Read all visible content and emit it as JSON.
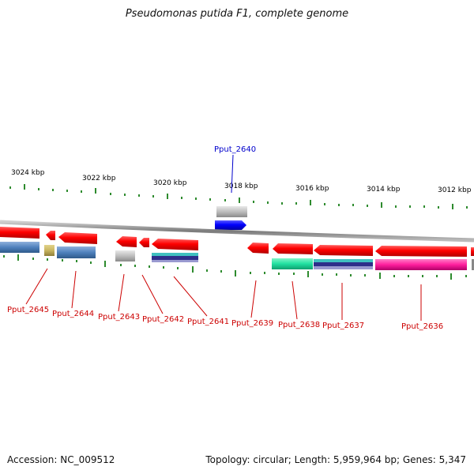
{
  "title": "Pseudomonas putida F1, complete genome",
  "footer": {
    "accession": "Accession: NC_009512",
    "summary": "Topology: circular; Length: 5,959,964 bp; Genes: 5,347"
  },
  "colors": {
    "red": "#ff0000",
    "blue": "#0000ff",
    "steel": "#4f81bd",
    "khaki": "#c8b560",
    "gray": "#b8b8b8",
    "teal": "#40c0c0",
    "navy": "#2e2e8a",
    "green": "#20e0a0",
    "magenta": "#ff1f9e",
    "label_red": "#cc0000",
    "label_blue": "#0000cc",
    "tick_green": "#2e8b2e",
    "backbone": "#888888"
  },
  "kbp_labels": [
    {
      "id": "3024",
      "text": "3024 kbp"
    },
    {
      "id": "3022",
      "text": "3022 kbp"
    },
    {
      "id": "3020",
      "text": "3020 kbp"
    },
    {
      "id": "3018",
      "text": "3018 kbp"
    },
    {
      "id": "3016",
      "text": "3016 kbp"
    },
    {
      "id": "3014",
      "text": "3014 kbp"
    },
    {
      "id": "3012",
      "text": "3012 kbp"
    }
  ],
  "gene_labels": [
    {
      "id": "2640",
      "text": "Pput_2640",
      "color": "blue"
    },
    {
      "id": "2645",
      "text": "Pput_2645",
      "color": "red"
    },
    {
      "id": "2644",
      "text": "Pput_2644",
      "color": "red"
    },
    {
      "id": "2643",
      "text": "Pput_2643",
      "color": "red"
    },
    {
      "id": "2642",
      "text": "Pput_2642",
      "color": "red"
    },
    {
      "id": "2641",
      "text": "Pput_2641",
      "color": "red"
    },
    {
      "id": "2639",
      "text": "Pput_2639",
      "color": "red"
    },
    {
      "id": "2638",
      "text": "Pput_2638",
      "color": "red"
    },
    {
      "id": "2637",
      "text": "Pput_2637",
      "color": "red"
    },
    {
      "id": "2636",
      "text": "Pput_2636",
      "color": "red"
    }
  ]
}
